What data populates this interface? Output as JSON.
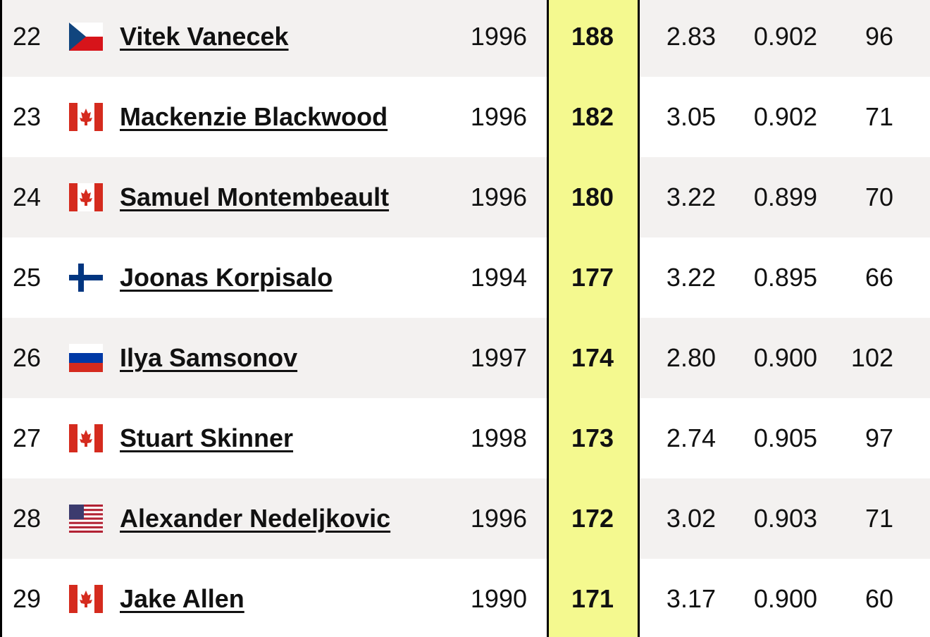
{
  "table": {
    "rows": [
      [
        "22",
        "Vitek Vanecek",
        "1996",
        "188",
        "2.83",
        "0.902",
        "96"
      ],
      [
        "23",
        "Mackenzie Blackwood",
        "1996",
        "182",
        "3.05",
        "0.902",
        "71"
      ],
      [
        "24",
        "Samuel Montembeault",
        "1996",
        "180",
        "3.22",
        "0.899",
        "70"
      ],
      [
        "25",
        "Joonas Korpisalo",
        "1994",
        "177",
        "3.22",
        "0.895",
        "66"
      ],
      [
        "26",
        "Ilya Samsonov",
        "1997",
        "174",
        "2.80",
        "0.900",
        "102"
      ],
      [
        "27",
        "Stuart Skinner",
        "1998",
        "173",
        "2.74",
        "0.905",
        "97"
      ],
      [
        "28",
        "Alexander Nedeljkovic",
        "1996",
        "172",
        "3.02",
        "0.903",
        "71"
      ],
      [
        "29",
        "Jake Allen",
        "1990",
        "171",
        "3.17",
        "0.900",
        "60"
      ]
    ]
  }
}
